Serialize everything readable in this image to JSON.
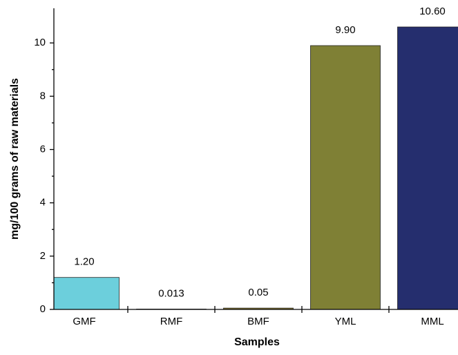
{
  "chart_data": {
    "type": "bar",
    "x_label": "Samples",
    "y_label": "mg/100 grams of raw materials",
    "categories": [
      "GMF",
      "RMF",
      "BMF",
      "YML",
      "MML"
    ],
    "values": [
      1.2,
      0.013,
      0.05,
      9.9,
      10.6
    ],
    "value_labels": [
      "1.20",
      "0.013",
      "0.05",
      "9.90",
      "10.60"
    ],
    "colors": [
      "#6ccfdc",
      "#555555",
      "#8c7a2c",
      "#7f8035",
      "#252e6e"
    ],
    "ylim": [
      0,
      11.3
    ],
    "yticks": [
      0,
      2,
      4,
      6,
      8,
      10
    ],
    "grid": false
  }
}
